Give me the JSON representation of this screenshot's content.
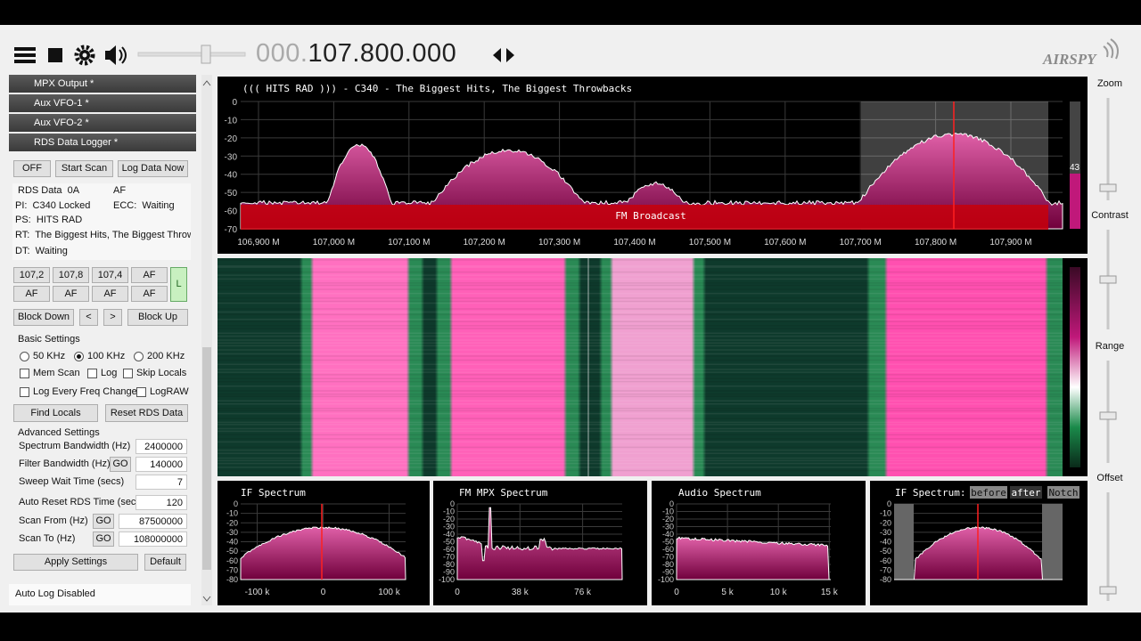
{
  "toolbar": {
    "frequency_prefix": "000.",
    "frequency": "107.800.000",
    "logo": "AIRSPY"
  },
  "sidebar": {
    "sections": [
      "MPX Output *",
      "Aux VFO-1 *",
      "Aux VFO-2 *",
      "RDS Data Logger *"
    ],
    "top_buttons": [
      "OFF",
      "Start Scan",
      "Log Data Now"
    ],
    "rds": {
      "rds_data": "RDS Data  0A",
      "af": "AF",
      "pi": "PI:  C340 Locked",
      "ecc": "ECC:  Waiting",
      "ps": "PS:  HITS RAD",
      "rt": "RT:  The Biggest Hits, The Biggest Throwba",
      "dt": "DT:  Waiting"
    },
    "af_buttons": [
      "107,2",
      "107,8",
      "107,4",
      "AF",
      "AF",
      "AF",
      "AF",
      "AF"
    ],
    "af_indicator": "L",
    "block_buttons": [
      "Block Down",
      "<",
      ">",
      "Block Up"
    ],
    "basic_settings": {
      "title": "Basic Settings",
      "radios": [
        "50 KHz",
        "100 KHz",
        "200 KHz"
      ],
      "selected": 1,
      "checkboxes": [
        "Mem Scan",
        "Log",
        "Skip Locals",
        "Log Every Freq Change",
        "LogRAW"
      ]
    },
    "buttons": [
      "Find Locals",
      "Reset RDS Data"
    ],
    "advanced_settings": {
      "title": "Advanced Settings",
      "rows": [
        {
          "label": "Spectrum Bandwidth (Hz)",
          "value": "2400000"
        },
        {
          "label": "Filter Bandwidth (Hz)",
          "go": "GO",
          "value": "140000"
        },
        {
          "label": "Sweep Wait Time (secs)",
          "value": "7"
        },
        {
          "label": "Auto Reset RDS Time (secs)",
          "value": "120"
        },
        {
          "label": "Scan From (Hz)",
          "go": "GO",
          "value": "87500000"
        },
        {
          "label": "Scan To (Hz)",
          "go": "GO",
          "value": "108000000"
        }
      ]
    },
    "bottom_buttons": [
      "Apply Settings",
      "Default"
    ],
    "status": "Auto Log Disabled"
  },
  "spectrum": {
    "title": "((( HITS RAD ))) - C340 -  The Biggest Hits, The Biggest Throwbacks",
    "yticks": [
      0,
      -10,
      -20,
      -30,
      -40,
      -50,
      -60,
      -70
    ],
    "xticks": [
      "106,900 M",
      "107,000 M",
      "107,100 M",
      "107,200 M",
      "107,300 M",
      "107,400 M",
      "107,500 M",
      "107,600 M",
      "107,700 M",
      "107,800 M",
      "107,900 M"
    ],
    "band_label": "FM Broadcast",
    "level": "43"
  },
  "sliders": [
    "Zoom",
    "Contrast",
    "Range",
    "Offset"
  ],
  "mini_spectra": [
    {
      "title": "IF Spectrum",
      "yticks": [
        0,
        -10,
        -20,
        -30,
        -40,
        -50,
        -60,
        -70,
        -80
      ],
      "xticks": [
        "-100 k",
        "0",
        "100 k"
      ]
    },
    {
      "title": "FM MPX Spectrum",
      "yticks": [
        0,
        -10,
        -20,
        -30,
        -40,
        -50,
        -60,
        -70,
        -80,
        -90,
        -100
      ],
      "xticks": [
        "0",
        "38 k",
        "76 k"
      ]
    },
    {
      "title": "Audio Spectrum",
      "yticks": [
        0,
        -10,
        -20,
        -30,
        -40,
        -50,
        -60,
        -70,
        -80,
        -90,
        -100
      ],
      "xticks": [
        "0",
        "5 k",
        "10 k",
        "15 k"
      ]
    },
    {
      "title": "IF Spectrum:",
      "buttons": [
        "before",
        "after",
        "Notch"
      ],
      "yticks": [
        0,
        -10,
        -20,
        -30,
        -40,
        -50,
        -60,
        -70,
        -80
      ]
    }
  ]
}
